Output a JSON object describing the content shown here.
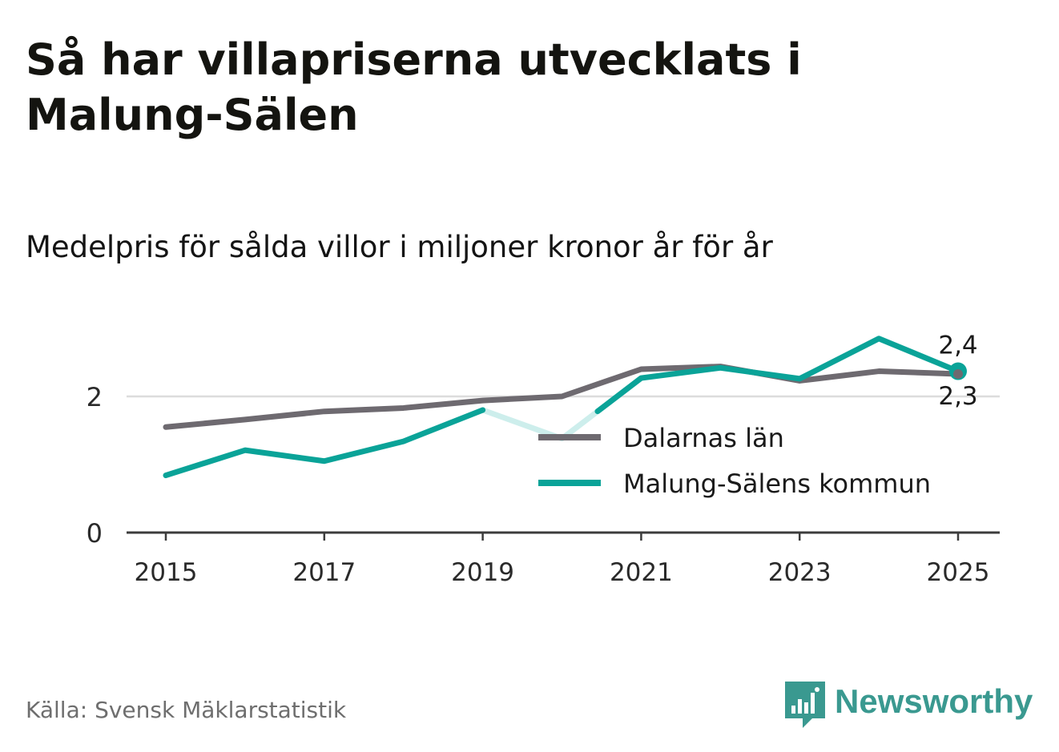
{
  "title": "Så har villapriserna utvecklats i Malung-Sälen",
  "subtitle": "Medelpris för sålda villor i miljoner kronor år för år",
  "source": "Källa: Svensk Mäklarstatistik",
  "brand": {
    "name": "Newsworthy",
    "color": "#3a9990"
  },
  "chart_data": {
    "type": "line",
    "x": [
      2015,
      2016,
      2017,
      2018,
      2019,
      2020,
      2021,
      2022,
      2023,
      2024,
      2025
    ],
    "x_tick_values": [
      2015,
      2017,
      2019,
      2021,
      2023,
      2025
    ],
    "x_tick_labels": [
      "2015",
      "2017",
      "2019",
      "2021",
      "2023",
      "2025"
    ],
    "y_tick_values": [
      0,
      2
    ],
    "y_tick_labels": [
      "0",
      "2"
    ],
    "ylim": [
      0,
      3.0
    ],
    "xlim": [
      2014.5,
      2025.5
    ],
    "grid": true,
    "legend_position": "bottom-right",
    "series": [
      {
        "name": "Dalarnas län",
        "color": "#6e6a70",
        "values": [
          1.55,
          1.66,
          1.78,
          1.83,
          1.94,
          2.0,
          2.4,
          2.44,
          2.23,
          2.37,
          2.33
        ],
        "end_label": "2,3"
      },
      {
        "name": "Malung-Sälens kommun",
        "color": "#0aa398",
        "faded_color": "#cdeeec",
        "values": [
          0.84,
          1.21,
          1.05,
          1.34,
          1.8,
          1.38,
          2.27,
          2.42,
          2.26,
          2.85,
          2.37
        ],
        "faded_segment_start_index": 4,
        "end_label": "2,4"
      }
    ]
  }
}
